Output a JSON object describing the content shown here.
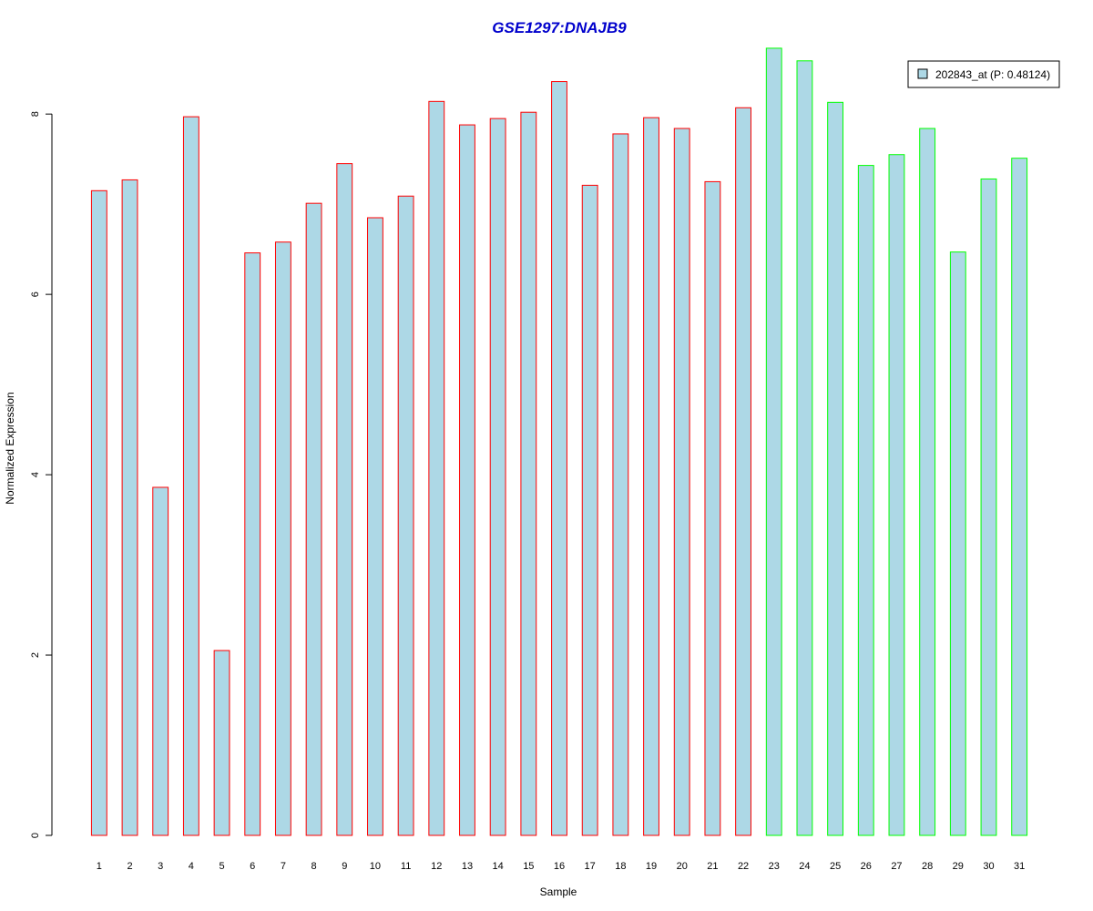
{
  "chart_data": {
    "type": "bar",
    "title": "GSE1297:DNAJB9",
    "xlabel": "Sample",
    "ylabel": "Normalized Expression",
    "ylim": [
      0,
      8.8
    ],
    "yticks": [
      0,
      2,
      4,
      6,
      8
    ],
    "categories": [
      "1",
      "2",
      "3",
      "4",
      "5",
      "6",
      "7",
      "8",
      "9",
      "10",
      "11",
      "12",
      "13",
      "14",
      "15",
      "16",
      "17",
      "18",
      "19",
      "20",
      "21",
      "22",
      "23",
      "24",
      "25",
      "26",
      "27",
      "28",
      "29",
      "30",
      "31"
    ],
    "series": [
      {
        "name": "202843_at (P: 0.48124)",
        "values": [
          7.15,
          7.27,
          3.86,
          7.97,
          2.05,
          6.46,
          6.58,
          7.01,
          7.45,
          6.85,
          7.09,
          8.14,
          7.88,
          7.95,
          8.02,
          8.36,
          7.21,
          7.78,
          7.96,
          7.84,
          7.25,
          8.07,
          8.73,
          8.59,
          8.13,
          7.43,
          7.55,
          7.84,
          6.47,
          7.28,
          7.51
        ],
        "group_split": 22
      }
    ],
    "legend_position": "top-right",
    "grid": false,
    "colors": {
      "fill": "#add8e6",
      "group1_border": "#ff0000",
      "group2_border": "#00ff00",
      "title": "#0000cc"
    }
  }
}
